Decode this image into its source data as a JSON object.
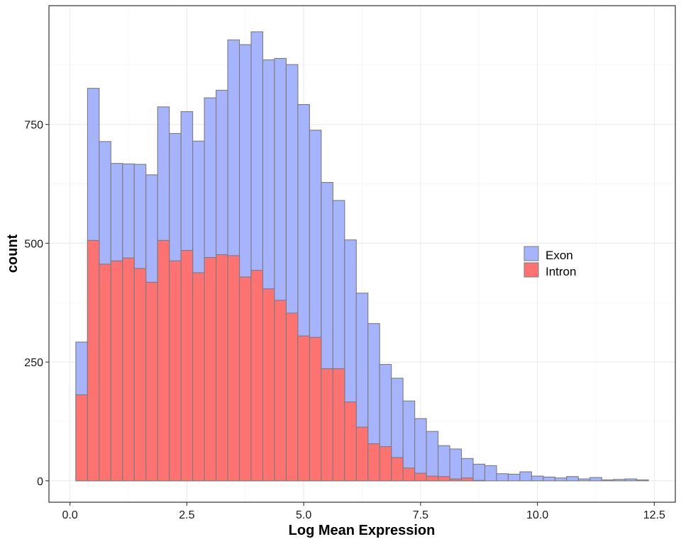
{
  "chart_data": {
    "type": "bar",
    "xlabel": "Log Mean Expression",
    "ylabel": "count",
    "xlim": [
      -0.45,
      12.95
    ],
    "ylim": [
      -45,
      1000
    ],
    "xticks": [
      0.0,
      2.5,
      5.0,
      7.5,
      10.0,
      12.5
    ],
    "xtick_labels": [
      "0.0",
      "2.5",
      "5.0",
      "7.5",
      "10.0",
      "12.5"
    ],
    "yticks": [
      0,
      250,
      500,
      750
    ],
    "ytick_labels": [
      "0",
      "250",
      "500",
      "750"
    ],
    "grid": true,
    "legend_position": "right",
    "bar_outline_color": "#7b7b7b",
    "series": [
      {
        "name": "Exon",
        "color": "#a5b4fc",
        "x": [
          0.25,
          0.5,
          0.75,
          1.0,
          1.25,
          1.5,
          1.75,
          2.0,
          2.25,
          2.5,
          2.75,
          3.0,
          3.25,
          3.5,
          3.75,
          4.0,
          4.25,
          4.5,
          4.75,
          5.0,
          5.25,
          5.5,
          5.75,
          6.0,
          6.25,
          6.5,
          6.75,
          7.0,
          7.25,
          7.5,
          7.75,
          8.0,
          8.25,
          8.5,
          8.75,
          9.0,
          9.25,
          9.5,
          9.75,
          10.0,
          10.25,
          10.5,
          10.75,
          11.0,
          11.25,
          11.5,
          11.75,
          12.0,
          12.25
        ],
        "values": [
          292,
          826,
          714,
          668,
          667,
          666,
          644,
          787,
          731,
          777,
          715,
          806,
          822,
          928,
          918,
          945,
          886,
          889,
          876,
          792,
          738,
          628,
          590,
          507,
          395,
          331,
          245,
          216,
          168,
          131,
          104,
          74,
          67,
          47,
          35,
          32,
          15,
          14,
          19,
          10,
          8,
          6,
          9,
          4,
          7,
          2,
          3,
          4,
          2
        ]
      },
      {
        "name": "Intron",
        "color": "#ff7272",
        "x": [
          0.25,
          0.5,
          0.75,
          1.0,
          1.25,
          1.5,
          1.75,
          2.0,
          2.25,
          2.5,
          2.75,
          3.0,
          3.25,
          3.5,
          3.75,
          4.0,
          4.25,
          4.5,
          4.75,
          5.0,
          5.25,
          5.5,
          5.75,
          6.0,
          6.25,
          6.5,
          6.75,
          7.0,
          7.25,
          7.5,
          7.75,
          8.0,
          8.25,
          8.5,
          8.75,
          9.0,
          9.25,
          9.5,
          9.75,
          10.0,
          10.25,
          10.5,
          10.75,
          11.0,
          11.25,
          11.5,
          11.75,
          12.0,
          12.25
        ],
        "values": [
          181,
          506,
          456,
          463,
          469,
          447,
          418,
          506,
          463,
          485,
          438,
          470,
          476,
          474,
          429,
          443,
          404,
          380,
          353,
          305,
          302,
          236,
          236,
          166,
          113,
          78,
          72,
          49,
          27,
          16,
          10,
          9,
          4,
          6,
          1,
          0,
          0,
          0,
          0,
          0,
          0,
          0,
          0,
          0,
          0,
          0,
          0,
          0,
          0
        ]
      }
    ],
    "bin_width": 0.25
  }
}
